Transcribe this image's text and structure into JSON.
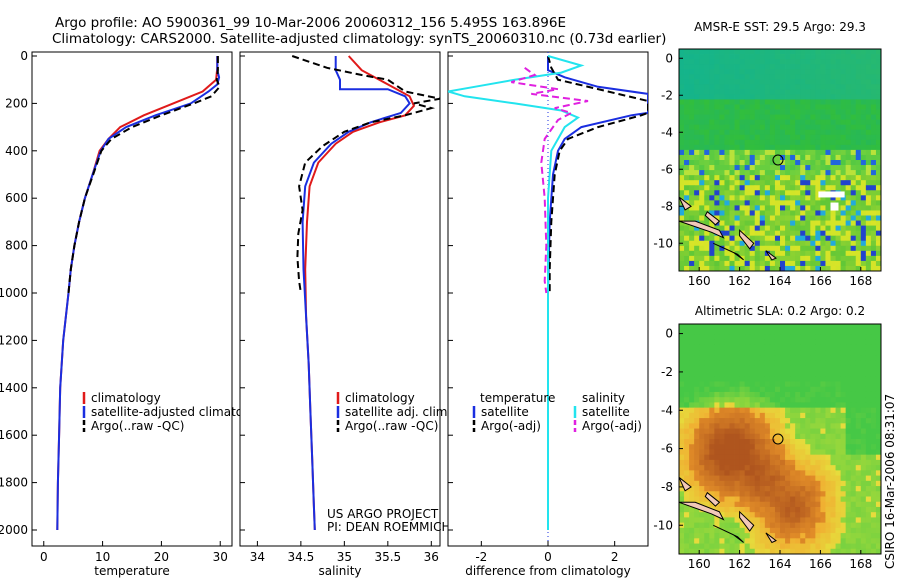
{
  "header": {
    "line1": "Argo profile: AO 5900361_99 10-Mar-2006 20060312_156 5.495S 163.896E",
    "line2": "Climatology: CARS2000. Satellite-adjusted climatology: synTS_20060310.nc (0.73d earlier)"
  },
  "credit": {
    "project": "US ARGO PROJECT",
    "pi": "PI: DEAN ROEMMICH",
    "stamp": "CSIRO 16-Mar-2006 08:31:07"
  },
  "colors": {
    "red": "#e01a1a",
    "blue": "#1a2ee0",
    "black": "#000000",
    "cyan": "#22e4ee",
    "magenta": "#e020e0"
  },
  "chart_data": [
    {
      "type": "line",
      "name": "temperature",
      "xlabel": "temperature",
      "ylabel": "",
      "xlim": [
        -2,
        32
      ],
      "ylim": [
        2100,
        0
      ],
      "xticks": [
        0,
        10,
        20,
        30
      ],
      "yticks": [
        0,
        200,
        400,
        600,
        800,
        1000,
        1200,
        1400,
        1600,
        1800,
        2000
      ],
      "legend": [
        "climatology",
        "satellite-adjusted climatology",
        "Argo(..raw -QC)"
      ],
      "series": [
        {
          "name": "climatology",
          "color": "red",
          "dash": "",
          "points": [
            [
              29.5,
              0
            ],
            [
              29.5,
              50
            ],
            [
              29.3,
              100
            ],
            [
              27,
              150
            ],
            [
              22,
              200
            ],
            [
              17,
              250
            ],
            [
              13,
              300
            ],
            [
              11,
              350
            ],
            [
              9.5,
              400
            ],
            [
              8.3,
              500
            ],
            [
              7,
              600
            ],
            [
              6,
              700
            ],
            [
              5.2,
              800
            ],
            [
              4.6,
              900
            ],
            [
              4.2,
              1000
            ],
            [
              3.3,
              1200
            ],
            [
              2.8,
              1400
            ],
            [
              2.6,
              1600
            ],
            [
              2.4,
              1800
            ],
            [
              2.3,
              2000
            ]
          ]
        },
        {
          "name": "satellite-adjusted climatology",
          "color": "blue",
          "dash": "",
          "points": [
            [
              29.5,
              0
            ],
            [
              29.5,
              60
            ],
            [
              29.8,
              90
            ],
            [
              29.5,
              120
            ],
            [
              28,
              150
            ],
            [
              25,
              200
            ],
            [
              19,
              250
            ],
            [
              14,
              300
            ],
            [
              11,
              350
            ],
            [
              9.7,
              400
            ],
            [
              8.3,
              500
            ],
            [
              7,
              600
            ],
            [
              6,
              700
            ],
            [
              5.2,
              800
            ],
            [
              4.6,
              900
            ],
            [
              4.2,
              1000
            ],
            [
              3.3,
              1200
            ],
            [
              2.8,
              1400
            ],
            [
              2.6,
              1600
            ],
            [
              2.4,
              1800
            ],
            [
              2.3,
              2000
            ]
          ]
        },
        {
          "name": "Argo(..raw -QC)",
          "color": "black",
          "dash": "7,4",
          "points": [
            [
              29.6,
              0
            ],
            [
              29.6,
              60
            ],
            [
              29.4,
              100
            ],
            [
              29.9,
              130
            ],
            [
              28.5,
              170
            ],
            [
              25.5,
              200
            ],
            [
              20,
              250
            ],
            [
              15,
              300
            ],
            [
              11.5,
              350
            ],
            [
              9.8,
              400
            ],
            [
              8.4,
              500
            ],
            [
              7,
              600
            ],
            [
              6,
              700
            ],
            [
              5.2,
              800
            ],
            [
              4.6,
              900
            ],
            [
              4.2,
              1000
            ]
          ]
        }
      ]
    },
    {
      "type": "line",
      "name": "salinity",
      "xlabel": "salinity",
      "ylabel": "",
      "xlim": [
        33.8,
        36.1
      ],
      "ylim": [
        2100,
        0
      ],
      "xticks": [
        34,
        34.5,
        35,
        35.5,
        36
      ],
      "yticks": [],
      "legend": [
        "climatology",
        "satellite adj. clim.",
        "Argo(..raw -QC)"
      ],
      "series": [
        {
          "name": "climatology",
          "color": "red",
          "dash": "",
          "points": [
            [
              35.05,
              0
            ],
            [
              35.2,
              60
            ],
            [
              35.5,
              120
            ],
            [
              35.75,
              170
            ],
            [
              35.8,
              210
            ],
            [
              35.7,
              250
            ],
            [
              35.4,
              280
            ],
            [
              35.1,
              320
            ],
            [
              34.9,
              370
            ],
            [
              34.7,
              450
            ],
            [
              34.6,
              550
            ],
            [
              34.57,
              700
            ],
            [
              34.55,
              900
            ],
            [
              34.56,
              1100
            ],
            [
              34.59,
              1300
            ],
            [
              34.61,
              1500
            ],
            [
              34.63,
              1700
            ],
            [
              34.65,
              1900
            ],
            [
              34.66,
              2000
            ]
          ]
        },
        {
          "name": "satellite adj. clim.",
          "color": "blue",
          "dash": "",
          "points": [
            [
              34.9,
              0
            ],
            [
              34.9,
              60
            ],
            [
              34.95,
              100
            ],
            [
              34.95,
              140
            ],
            [
              35.5,
              140
            ],
            [
              35.7,
              170
            ],
            [
              35.75,
              200
            ],
            [
              35.65,
              240
            ],
            [
              35.3,
              280
            ],
            [
              35.05,
              320
            ],
            [
              34.85,
              370
            ],
            [
              34.65,
              450
            ],
            [
              34.55,
              550
            ],
            [
              34.52,
              700
            ],
            [
              34.53,
              900
            ],
            [
              34.56,
              1100
            ],
            [
              34.59,
              1300
            ],
            [
              34.61,
              1500
            ],
            [
              34.63,
              1700
            ],
            [
              34.65,
              1900
            ],
            [
              34.66,
              2000
            ]
          ]
        },
        {
          "name": "Argo(..raw -QC)",
          "color": "black",
          "dash": "7,4",
          "points": [
            [
              34.4,
              0
            ],
            [
              34.8,
              50
            ],
            [
              35.2,
              80
            ],
            [
              35.5,
              100
            ],
            [
              35.7,
              150
            ],
            [
              36.1,
              180
            ],
            [
              35.8,
              200
            ],
            [
              36.0,
              220
            ],
            [
              35.7,
              250
            ],
            [
              35.3,
              280
            ],
            [
              35.0,
              320
            ],
            [
              34.75,
              380
            ],
            [
              34.55,
              450
            ],
            [
              34.48,
              550
            ],
            [
              34.52,
              650
            ],
            [
              34.47,
              750
            ],
            [
              34.46,
              850
            ],
            [
              34.48,
              950
            ],
            [
              34.5,
              1000
            ]
          ]
        }
      ]
    },
    {
      "type": "line",
      "name": "difference from climatology",
      "xlabel": "difference from climatology",
      "ylabel": "",
      "xlim": [
        -3,
        3
      ],
      "ylim": [
        2100,
        0
      ],
      "xticks": [
        -2,
        0,
        2
      ],
      "yticks": [],
      "legend_groups": [
        {
          "title": "temperature",
          "items": [
            "satellite",
            "Argo(-adj)"
          ]
        },
        {
          "title": "salinity",
          "items": [
            "satellite",
            "Argo(-adj)"
          ]
        }
      ],
      "series": [
        {
          "name": "temperature satellite",
          "color": "blue",
          "dash": "",
          "points": [
            [
              0,
              0
            ],
            [
              0,
              60
            ],
            [
              0.5,
              90
            ],
            [
              1.5,
              130
            ],
            [
              3,
              160
            ],
            [
              3,
              240
            ],
            [
              2.5,
              250
            ],
            [
              1,
              300
            ],
            [
              0.5,
              350
            ],
            [
              0.3,
              400
            ],
            [
              0.15,
              500
            ],
            [
              0.05,
              700
            ],
            [
              0,
              1000
            ],
            [
              0,
              2000
            ]
          ]
        },
        {
          "name": "temperature Argo(-adj)",
          "color": "black",
          "dash": "7,4",
          "points": [
            [
              0,
              0
            ],
            [
              0.1,
              50
            ],
            [
              0.3,
              100
            ],
            [
              1.8,
              150
            ],
            [
              3,
              190
            ],
            [
              3,
              240
            ],
            [
              2.8,
              250
            ],
            [
              1.5,
              300
            ],
            [
              0.6,
              350
            ],
            [
              0.35,
              400
            ],
            [
              0.2,
              500
            ],
            [
              0.1,
              700
            ],
            [
              0.05,
              900
            ],
            [
              0.05,
              1000
            ]
          ]
        }
      ]
    },
    {
      "type": "heatmap",
      "name": "sst",
      "title": "AMSR-E SST: 29.5 Argo: 29.3",
      "xlim": [
        159,
        169
      ],
      "ylim": [
        -11.5,
        0.5
      ],
      "xticks": [
        160,
        162,
        164,
        166,
        168
      ],
      "yticks": [
        0,
        -2,
        -4,
        -6,
        -8,
        -10
      ],
      "marker": [
        163.9,
        -5.5
      ]
    },
    {
      "type": "heatmap",
      "name": "sla",
      "title": "Altimetric SLA: 0.2 Argo: 0.2",
      "xlim": [
        159,
        169
      ],
      "ylim": [
        -11.5,
        0.5
      ],
      "xticks": [
        160,
        162,
        164,
        166,
        168
      ],
      "yticks": [
        0,
        -2,
        -4,
        -6,
        -8,
        -10
      ],
      "marker": [
        163.9,
        -5.5
      ]
    }
  ]
}
